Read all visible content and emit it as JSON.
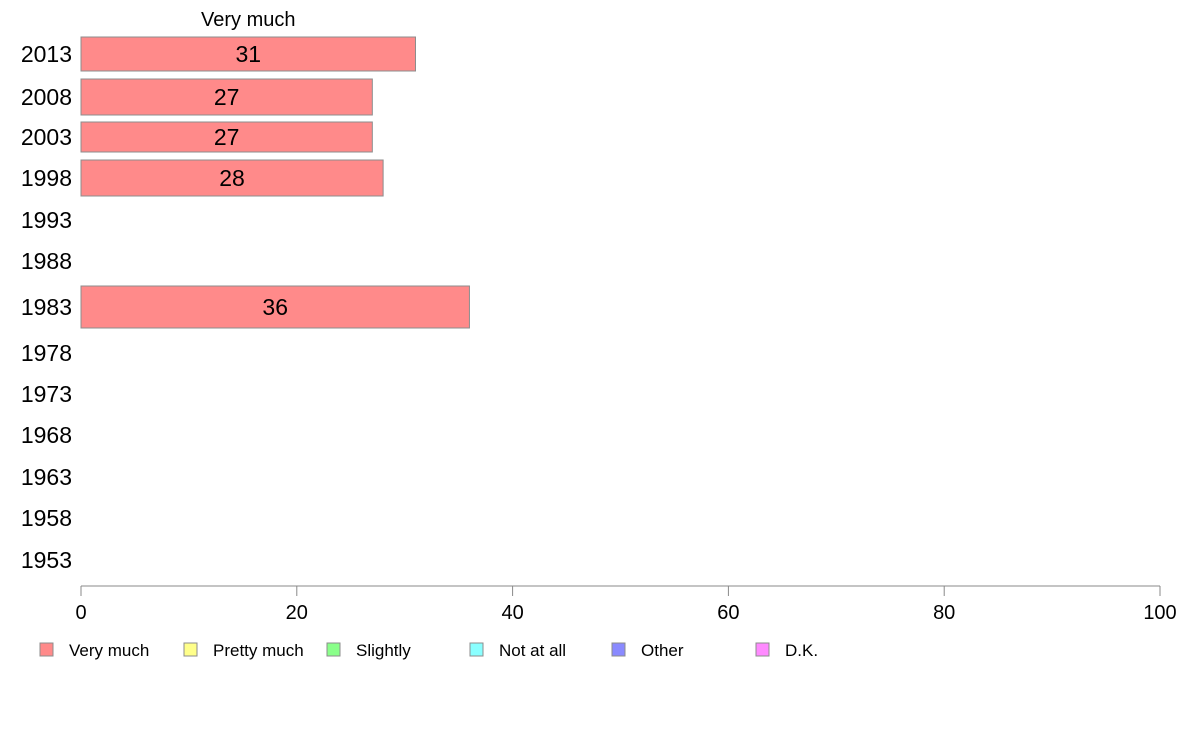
{
  "chart_data": {
    "type": "bar",
    "orientation": "horizontal",
    "categories": [
      "2013",
      "2008",
      "2003",
      "1998",
      "1993",
      "1988",
      "1983",
      "1978",
      "1973",
      "1968",
      "1963",
      "1958",
      "1953"
    ],
    "series": [
      {
        "name": "Very much",
        "color": "#ff8a8a",
        "values": [
          31,
          27,
          27,
          28,
          null,
          null,
          36,
          null,
          null,
          null,
          null,
          null,
          null
        ]
      }
    ],
    "series_header": "Very much",
    "xlim": [
      0,
      100
    ],
    "xticks": [
      0,
      20,
      40,
      60,
      80,
      100
    ],
    "grid": false,
    "legend": {
      "position": "bottom",
      "items": [
        {
          "label": "Very much",
          "color": "#ff8a8a"
        },
        {
          "label": "Pretty much",
          "color": "#ffff8a"
        },
        {
          "label": "Slightly",
          "color": "#8aff8a"
        },
        {
          "label": "Not at all",
          "color": "#8affff"
        },
        {
          "label": "Other",
          "color": "#8a8aff"
        },
        {
          "label": "D.K.",
          "color": "#ff8aff"
        }
      ]
    }
  }
}
